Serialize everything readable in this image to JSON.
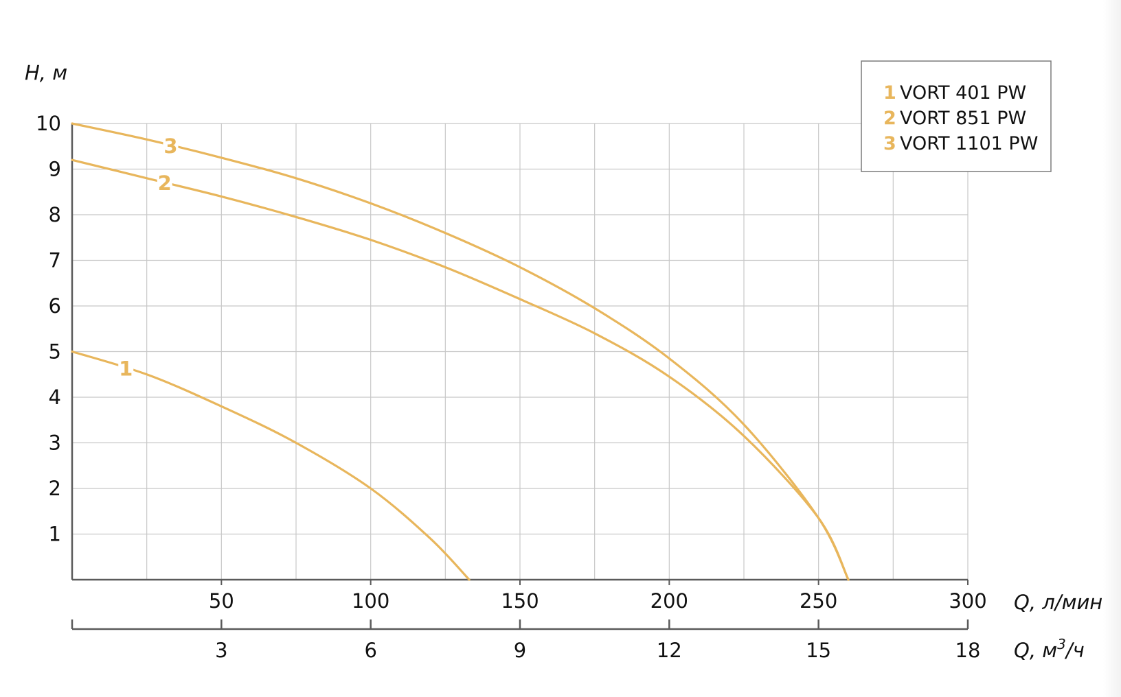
{
  "chart_data": {
    "type": "line",
    "y_axis": {
      "label": "H, м",
      "ticks": [
        "1",
        "2",
        "3",
        "4",
        "5",
        "6",
        "7",
        "8",
        "9",
        "10"
      ],
      "range": [
        0,
        10
      ]
    },
    "x_axis_primary": {
      "label": "Q, л/мин",
      "ticks": [
        "50",
        "100",
        "150",
        "200",
        "250",
        "300"
      ],
      "range": [
        0,
        300
      ]
    },
    "x_axis_secondary": {
      "label_main": "Q, м",
      "label_sup": "3",
      "label_tail": "/ч",
      "ticks": [
        "3",
        "6",
        "9",
        "12",
        "15",
        "18"
      ],
      "range": [
        0,
        18
      ]
    },
    "grid": true,
    "legend_position": "top-right",
    "series": [
      {
        "name": "VORT 401 PW",
        "label": "1",
        "x": [
          0,
          25,
          50,
          75,
          100,
          120,
          133
        ],
        "values": [
          5.0,
          4.5,
          3.8,
          3.0,
          2.0,
          0.9,
          0.0
        ]
      },
      {
        "name": "VORT 851 PW",
        "label": "2",
        "x": [
          0,
          25,
          50,
          75,
          100,
          125,
          150,
          175,
          200,
          225,
          250,
          260
        ],
        "values": [
          9.2,
          8.8,
          8.4,
          7.95,
          7.45,
          6.85,
          6.15,
          5.4,
          4.45,
          3.15,
          1.35,
          0.0
        ]
      },
      {
        "name": "VORT 1101 PW",
        "label": "3",
        "x": [
          0,
          25,
          50,
          75,
          100,
          125,
          150,
          175,
          200,
          225,
          250,
          260
        ],
        "values": [
          10.0,
          9.65,
          9.25,
          8.8,
          8.25,
          7.6,
          6.85,
          5.95,
          4.85,
          3.4,
          1.35,
          0.0
        ]
      }
    ],
    "curve_color": "#e8b65c",
    "grid_color": "#c8c8c8",
    "axis_color": "#5a5a5a"
  }
}
